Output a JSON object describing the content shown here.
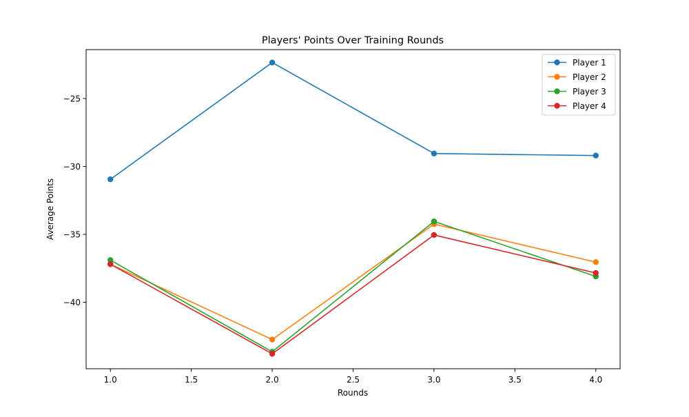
{
  "chart_data": {
    "type": "line",
    "title": "Players' Points Over Training Rounds",
    "xlabel": "Rounds",
    "ylabel": "Average Points",
    "x": [
      1.0,
      2.0,
      3.0,
      4.0
    ],
    "xlim": [
      0.85,
      4.15
    ],
    "ylim": [
      -44.9,
      -21.4
    ],
    "xticks": [
      1.0,
      1.5,
      2.0,
      2.5,
      3.0,
      3.5,
      4.0
    ],
    "xtick_labels": [
      "1.0",
      "1.5",
      "2.0",
      "2.5",
      "3.0",
      "3.5",
      "4.0"
    ],
    "yticks": [
      -40,
      -35,
      -30,
      -25
    ],
    "ytick_labels": [
      "−40",
      "−35",
      "−30",
      "−25"
    ],
    "grid": false,
    "legend_position": "top-right",
    "series": [
      {
        "name": "Player 1",
        "color": "#1f77b4",
        "values": [
          -30.95,
          -22.35,
          -29.05,
          -29.2
        ]
      },
      {
        "name": "Player 2",
        "color": "#ff7f0e",
        "values": [
          -37.2,
          -42.75,
          -34.25,
          -37.05
        ]
      },
      {
        "name": "Player 3",
        "color": "#2ca02c",
        "values": [
          -36.9,
          -43.65,
          -34.05,
          -38.1
        ]
      },
      {
        "name": "Player 4",
        "color": "#d62728",
        "values": [
          -37.2,
          -43.8,
          -35.05,
          -37.85
        ]
      }
    ]
  }
}
